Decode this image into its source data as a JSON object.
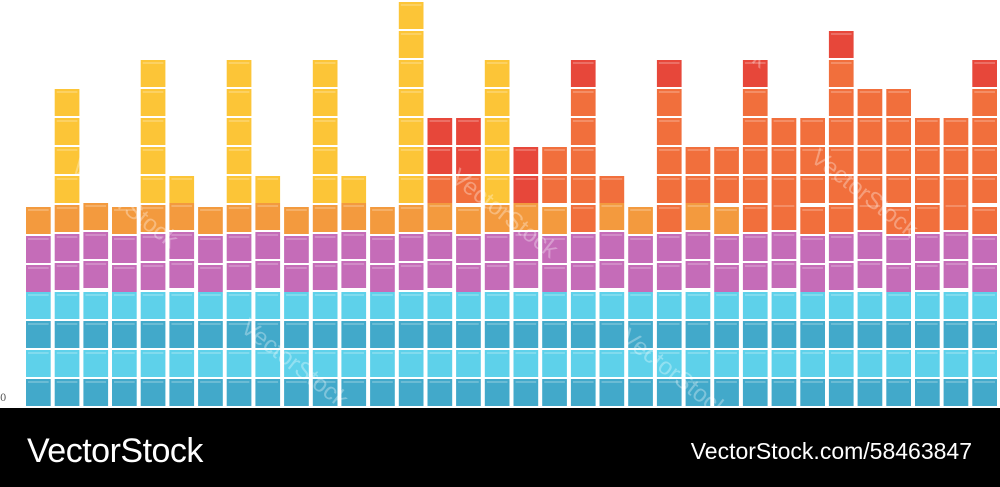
{
  "footer": {
    "brand": "VectorStock",
    "image_id": "VectorStock.com/58463847"
  },
  "corner_text": "0",
  "watermark": {
    "text": "VectorStock",
    "count": 7
  },
  "colors": {
    "background": "#ffffff",
    "footer": "#000000",
    "cyan_light": "#5ed1ea",
    "cyan_dark": "#42a9ca",
    "magenta": "#c56cb8",
    "orange": "#f39a3e",
    "orange_red": "#f16f3c",
    "red": "#e7473a",
    "yellow": "#fcc537",
    "block_line": "#ffffff"
  },
  "equalizer": {
    "columns": 34,
    "levels": [
      7,
      11,
      7,
      7,
      12,
      8,
      7,
      12,
      8,
      7,
      12,
      8,
      7,
      14,
      10,
      10,
      12,
      9,
      9,
      12,
      8,
      7,
      12,
      9,
      9,
      12,
      10,
      10,
      13,
      11,
      11,
      10,
      10,
      12
    ]
  }
}
